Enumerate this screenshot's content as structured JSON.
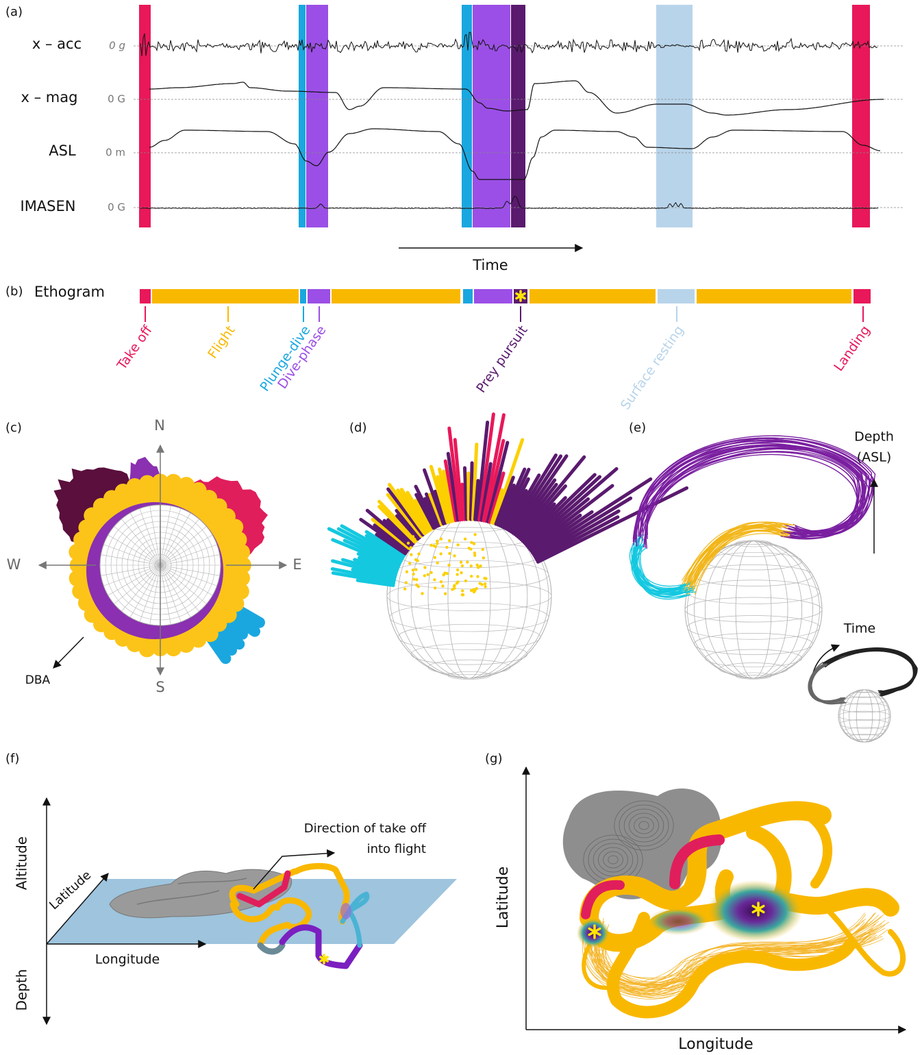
{
  "panels": {
    "a": {
      "label": "(a)",
      "rows": [
        {
          "name": "x – acc",
          "zero": "0 g"
        },
        {
          "name": "x – mag",
          "zero": "0 G"
        },
        {
          "name": "ASL",
          "zero": "0 m"
        },
        {
          "name": "IMASEN",
          "zero": "0 G"
        }
      ],
      "time": "Time"
    },
    "b": {
      "label": "(b)",
      "title": "Ethogram",
      "behaviours": [
        "Take off",
        "Flight",
        "Plunge-dive",
        "Dive-phase",
        "Prey pursuit",
        "Surface resting",
        "Landing"
      ]
    },
    "c": {
      "label": "(c)",
      "north": "N",
      "east": "E",
      "south": "S",
      "west": "W",
      "dba": "DBA"
    },
    "d": {
      "label": "(d)"
    },
    "e": {
      "label": "(e)",
      "depth": [
        "Depth",
        "(ASL)"
      ],
      "time": "Time"
    },
    "f": {
      "label": "(f)",
      "altitude": "Altitude",
      "latitude": "Latitude",
      "longitude": "Longitude",
      "depth": "Depth",
      "note": [
        "Direction of take off",
        "into flight"
      ]
    },
    "g": {
      "label": "(g)",
      "latitude": "Latitude",
      "longitude": "Longitude"
    }
  }
}
